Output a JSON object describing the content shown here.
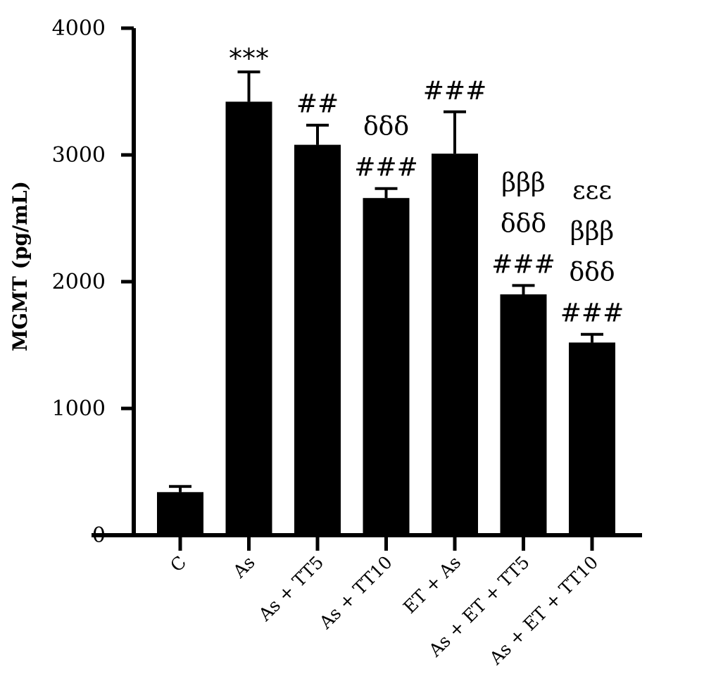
{
  "chart_data": {
    "type": "bar",
    "title": "",
    "xlabel": "",
    "ylabel": "MGMT (pg/mL)",
    "ylim": [
      0,
      4000
    ],
    "yticks": [
      "0",
      "1000",
      "2000",
      "3000",
      "4000"
    ],
    "grid": false,
    "categories": [
      "C",
      "As",
      "As + TT5",
      "As + TT10",
      "ET + As",
      "As + ET + TT5",
      "As + ET + TT10"
    ],
    "values": [
      340,
      3420,
      3080,
      2660,
      3010,
      1900,
      1520
    ],
    "errors": [
      45,
      235,
      155,
      75,
      330,
      70,
      65
    ],
    "color": "#000000",
    "annotations": [
      [
        "***"
      ],
      [
        "##"
      ],
      [
        "δδδ",
        "###"
      ],
      [
        "###"
      ],
      [
        "βββ",
        "δδδ",
        "###"
      ],
      [
        "εεε",
        "βββ",
        "δδδ",
        "###"
      ]
    ],
    "annotation_categories": [
      "As",
      "As + TT5",
      "As + TT10",
      "ET + As",
      "As + ET + TT5",
      "As + ET + TT10"
    ]
  }
}
